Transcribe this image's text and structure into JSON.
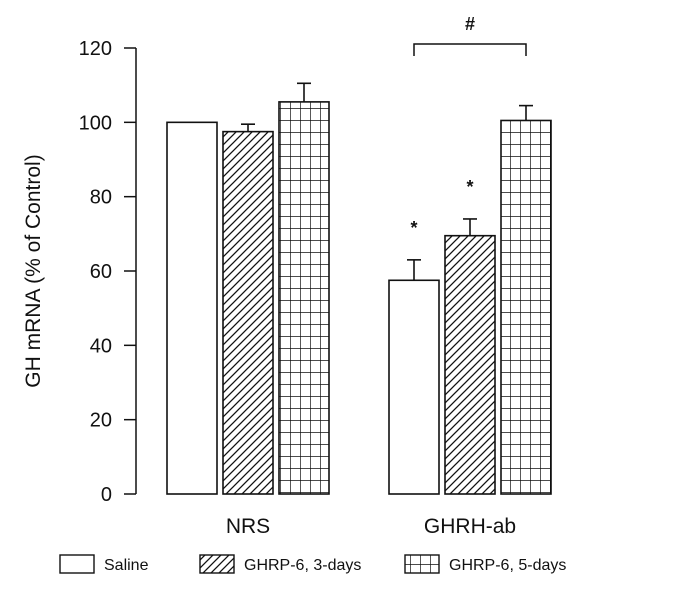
{
  "chart_data": {
    "type": "bar",
    "ylabel": "GH mRNA (% of Control)",
    "xlabel": "",
    "ylim": [
      0,
      120
    ],
    "yticks": [
      0,
      20,
      40,
      60,
      80,
      100,
      120
    ],
    "categories": [
      "NRS",
      "GHRH-ab"
    ],
    "series": [
      {
        "name": "Saline",
        "pattern": "none",
        "values": [
          100,
          57.5
        ],
        "errors": [
          0,
          5.5
        ]
      },
      {
        "name": "GHRP-6, 3-days",
        "pattern": "diagonal",
        "values": [
          97.5,
          69.5
        ],
        "errors": [
          2,
          4.5
        ]
      },
      {
        "name": "GHRP-6, 5-days",
        "pattern": "grid",
        "values": [
          105.5,
          100.5
        ],
        "errors": [
          5,
          4
        ]
      }
    ],
    "annotations": [
      {
        "label": "*",
        "category": "GHRH-ab",
        "series": "Saline"
      },
      {
        "label": "*",
        "category": "GHRH-ab",
        "series": "GHRP-6, 3-days"
      },
      {
        "label": "#",
        "category": "GHRH-ab",
        "type": "bracket",
        "from_series": "Saline",
        "to_series": "GHRP-6, 5-days"
      }
    ],
    "legend_position": "bottom",
    "grid": false
  }
}
